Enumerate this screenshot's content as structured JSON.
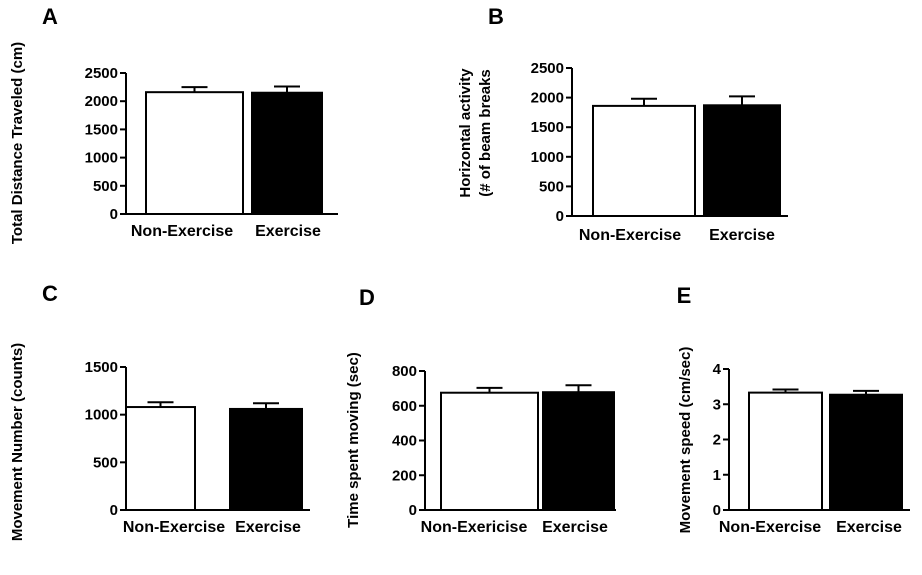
{
  "chart_data": [
    {
      "panel": "A",
      "type": "bar",
      "categories": [
        "Non-Exercise",
        "Exercise"
      ],
      "values": [
        2160,
        2150
      ],
      "errors": [
        90,
        110
      ],
      "ylabel": "Total Distance Traveled (cm)",
      "ylim": [
        0,
        2500
      ],
      "yticks": [
        "0",
        "500",
        "1000",
        "1500",
        "2000",
        "2500"
      ],
      "ytick_values": [
        0,
        500,
        1000,
        1500,
        2000,
        2500
      ],
      "colors": [
        "#ffffff",
        "#000000"
      ]
    },
    {
      "panel": "B",
      "type": "bar",
      "categories": [
        "Non-Exercise",
        "Exercise"
      ],
      "values": [
        1860,
        1870
      ],
      "errors": [
        120,
        150
      ],
      "ylabel": [
        "Horizontal activity",
        "(# of beam breaks"
      ],
      "ylim": [
        0,
        2500
      ],
      "yticks": [
        "0",
        "500",
        "1000",
        "1500",
        "2000",
        "2500"
      ],
      "ytick_values": [
        0,
        500,
        1000,
        1500,
        2000,
        2500
      ],
      "colors": [
        "#ffffff",
        "#000000"
      ]
    },
    {
      "panel": "C",
      "type": "bar",
      "categories": [
        "Non-Exercise",
        "Exercise"
      ],
      "values": [
        1080,
        1060
      ],
      "errors": [
        50,
        60
      ],
      "ylabel": "Movement  Number  (counts)",
      "ylim": [
        0,
        1500
      ],
      "yticks": [
        "0",
        "500",
        "1000",
        "1500"
      ],
      "ytick_values": [
        0,
        500,
        1000,
        1500
      ],
      "colors": [
        "#ffffff",
        "#000000"
      ]
    },
    {
      "panel": "D",
      "type": "bar",
      "categories": [
        "Non-Exericise",
        "Exercise"
      ],
      "values": [
        675,
        678
      ],
      "errors": [
        28,
        40
      ],
      "ylabel": "Time spent moving  (sec)",
      "ylim": [
        0,
        800
      ],
      "yticks": [
        "0",
        "200",
        "400",
        "600",
        "800"
      ],
      "ytick_values": [
        0,
        200,
        400,
        600,
        800
      ],
      "colors": [
        "#ffffff",
        "#000000"
      ]
    },
    {
      "panel": "E",
      "type": "bar",
      "categories": [
        "Non-Exercise",
        "Exercise"
      ],
      "values": [
        3.33,
        3.27
      ],
      "errors": [
        0.09,
        0.11
      ],
      "ylabel": "Movement speed  (cm/sec)",
      "ylim": [
        0,
        4
      ],
      "yticks": [
        "0",
        "1",
        "2",
        "3",
        "4"
      ],
      "ytick_values": [
        0,
        1,
        2,
        3,
        4
      ],
      "colors": [
        "#ffffff",
        "#000000"
      ]
    }
  ]
}
